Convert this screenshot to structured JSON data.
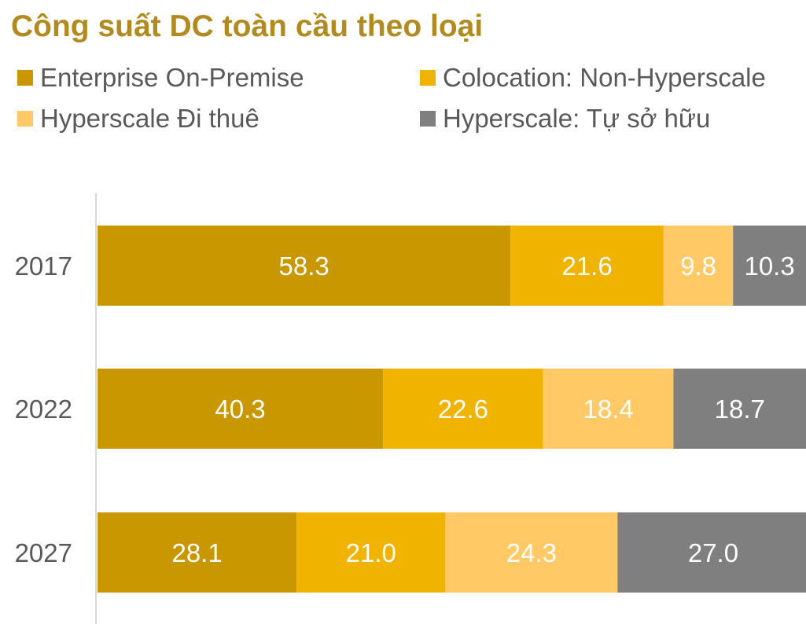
{
  "chart_data": {
    "type": "bar",
    "orientation": "horizontal",
    "stacked": true,
    "title": "Công suất DC toàn cầu theo loại",
    "categories": [
      "2017",
      "2022",
      "2027"
    ],
    "series": [
      {
        "name": "Enterprise On-Premise",
        "color": "#c99700",
        "values": [
          58.3,
          40.3,
          28.1
        ]
      },
      {
        "name": "Colocation: Non-Hyperscale",
        "color": "#f0b400",
        "values": [
          21.6,
          22.6,
          21.0
        ]
      },
      {
        "name": "Hyperscale Đi thuê",
        "color": "#ffc966",
        "values": [
          9.8,
          18.4,
          24.3
        ]
      },
      {
        "name": "Hyperscale: Tự sở hữu",
        "color": "#7f7f7f",
        "values": [
          10.3,
          18.7,
          27.0
        ]
      }
    ],
    "xlim": [
      0,
      100
    ],
    "legend_position": "top",
    "grid": false,
    "data_labels": true
  }
}
